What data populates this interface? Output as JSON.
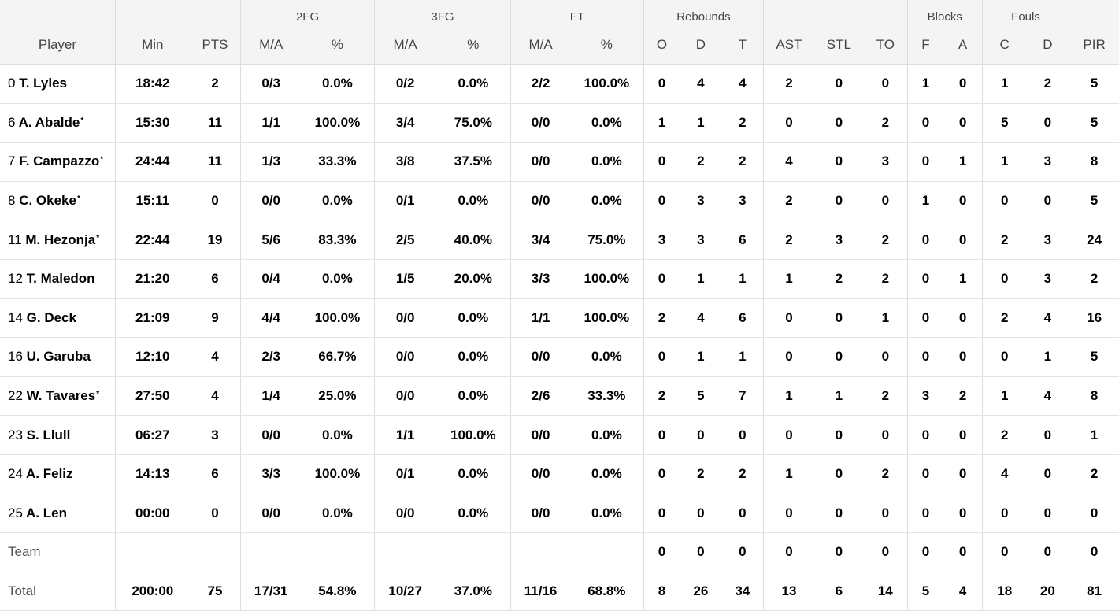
{
  "headers": {
    "groups": {
      "fg2": "2FG",
      "fg3": "3FG",
      "ft": "FT",
      "rebounds": "Rebounds",
      "blocks": "Blocks",
      "fouls": "Fouls"
    },
    "columns": {
      "player": "Player",
      "min": "Min",
      "pts": "PTS",
      "fg2_ma": "M/A",
      "fg2_pct": "%",
      "fg3_ma": "M/A",
      "fg3_pct": "%",
      "ft_ma": "M/A",
      "ft_pct": "%",
      "reb_o": "O",
      "reb_d": "D",
      "reb_t": "T",
      "ast": "AST",
      "stl": "STL",
      "to": "TO",
      "blk_f": "F",
      "blk_a": "A",
      "foul_c": "C",
      "foul_d": "D",
      "pir": "PIR"
    }
  },
  "starter_mark": "*",
  "rows": [
    {
      "number": "0",
      "name": "T. Lyles",
      "starter": false,
      "min": "18:42",
      "pts": "2",
      "fg2_ma": "0/3",
      "fg2_pct": "0.0%",
      "fg3_ma": "0/2",
      "fg3_pct": "0.0%",
      "ft_ma": "2/2",
      "ft_pct": "100.0%",
      "reb_o": "0",
      "reb_d": "4",
      "reb_t": "4",
      "ast": "2",
      "stl": "0",
      "to": "0",
      "blk_f": "1",
      "blk_a": "0",
      "foul_c": "1",
      "foul_d": "2",
      "pir": "5"
    },
    {
      "number": "6",
      "name": "A. Abalde",
      "starter": true,
      "min": "15:30",
      "pts": "11",
      "fg2_ma": "1/1",
      "fg2_pct": "100.0%",
      "fg3_ma": "3/4",
      "fg3_pct": "75.0%",
      "ft_ma": "0/0",
      "ft_pct": "0.0%",
      "reb_o": "1",
      "reb_d": "1",
      "reb_t": "2",
      "ast": "0",
      "stl": "0",
      "to": "2",
      "blk_f": "0",
      "blk_a": "0",
      "foul_c": "5",
      "foul_d": "0",
      "pir": "5"
    },
    {
      "number": "7",
      "name": "F. Campazzo",
      "starter": true,
      "min": "24:44",
      "pts": "11",
      "fg2_ma": "1/3",
      "fg2_pct": "33.3%",
      "fg3_ma": "3/8",
      "fg3_pct": "37.5%",
      "ft_ma": "0/0",
      "ft_pct": "0.0%",
      "reb_o": "0",
      "reb_d": "2",
      "reb_t": "2",
      "ast": "4",
      "stl": "0",
      "to": "3",
      "blk_f": "0",
      "blk_a": "1",
      "foul_c": "1",
      "foul_d": "3",
      "pir": "8"
    },
    {
      "number": "8",
      "name": "C. Okeke",
      "starter": true,
      "min": "15:11",
      "pts": "0",
      "fg2_ma": "0/0",
      "fg2_pct": "0.0%",
      "fg3_ma": "0/1",
      "fg3_pct": "0.0%",
      "ft_ma": "0/0",
      "ft_pct": "0.0%",
      "reb_o": "0",
      "reb_d": "3",
      "reb_t": "3",
      "ast": "2",
      "stl": "0",
      "to": "0",
      "blk_f": "1",
      "blk_a": "0",
      "foul_c": "0",
      "foul_d": "0",
      "pir": "5"
    },
    {
      "number": "11",
      "name": "M. Hezonja",
      "starter": true,
      "min": "22:44",
      "pts": "19",
      "fg2_ma": "5/6",
      "fg2_pct": "83.3%",
      "fg3_ma": "2/5",
      "fg3_pct": "40.0%",
      "ft_ma": "3/4",
      "ft_pct": "75.0%",
      "reb_o": "3",
      "reb_d": "3",
      "reb_t": "6",
      "ast": "2",
      "stl": "3",
      "to": "2",
      "blk_f": "0",
      "blk_a": "0",
      "foul_c": "2",
      "foul_d": "3",
      "pir": "24"
    },
    {
      "number": "12",
      "name": "T. Maledon",
      "starter": false,
      "min": "21:20",
      "pts": "6",
      "fg2_ma": "0/4",
      "fg2_pct": "0.0%",
      "fg3_ma": "1/5",
      "fg3_pct": "20.0%",
      "ft_ma": "3/3",
      "ft_pct": "100.0%",
      "reb_o": "0",
      "reb_d": "1",
      "reb_t": "1",
      "ast": "1",
      "stl": "2",
      "to": "2",
      "blk_f": "0",
      "blk_a": "1",
      "foul_c": "0",
      "foul_d": "3",
      "pir": "2"
    },
    {
      "number": "14",
      "name": "G. Deck",
      "starter": false,
      "min": "21:09",
      "pts": "9",
      "fg2_ma": "4/4",
      "fg2_pct": "100.0%",
      "fg3_ma": "0/0",
      "fg3_pct": "0.0%",
      "ft_ma": "1/1",
      "ft_pct": "100.0%",
      "reb_o": "2",
      "reb_d": "4",
      "reb_t": "6",
      "ast": "0",
      "stl": "0",
      "to": "1",
      "blk_f": "0",
      "blk_a": "0",
      "foul_c": "2",
      "foul_d": "4",
      "pir": "16"
    },
    {
      "number": "16",
      "name": "U. Garuba",
      "starter": false,
      "min": "12:10",
      "pts": "4",
      "fg2_ma": "2/3",
      "fg2_pct": "66.7%",
      "fg3_ma": "0/0",
      "fg3_pct": "0.0%",
      "ft_ma": "0/0",
      "ft_pct": "0.0%",
      "reb_o": "0",
      "reb_d": "1",
      "reb_t": "1",
      "ast": "0",
      "stl": "0",
      "to": "0",
      "blk_f": "0",
      "blk_a": "0",
      "foul_c": "0",
      "foul_d": "1",
      "pir": "5"
    },
    {
      "number": "22",
      "name": "W. Tavares",
      "starter": true,
      "min": "27:50",
      "pts": "4",
      "fg2_ma": "1/4",
      "fg2_pct": "25.0%",
      "fg3_ma": "0/0",
      "fg3_pct": "0.0%",
      "ft_ma": "2/6",
      "ft_pct": "33.3%",
      "reb_o": "2",
      "reb_d": "5",
      "reb_t": "7",
      "ast": "1",
      "stl": "1",
      "to": "2",
      "blk_f": "3",
      "blk_a": "2",
      "foul_c": "1",
      "foul_d": "4",
      "pir": "8"
    },
    {
      "number": "23",
      "name": "S. Llull",
      "starter": false,
      "min": "06:27",
      "pts": "3",
      "fg2_ma": "0/0",
      "fg2_pct": "0.0%",
      "fg3_ma": "1/1",
      "fg3_pct": "100.0%",
      "ft_ma": "0/0",
      "ft_pct": "0.0%",
      "reb_o": "0",
      "reb_d": "0",
      "reb_t": "0",
      "ast": "0",
      "stl": "0",
      "to": "0",
      "blk_f": "0",
      "blk_a": "0",
      "foul_c": "2",
      "foul_d": "0",
      "pir": "1"
    },
    {
      "number": "24",
      "name": "A. Feliz",
      "starter": false,
      "min": "14:13",
      "pts": "6",
      "fg2_ma": "3/3",
      "fg2_pct": "100.0%",
      "fg3_ma": "0/1",
      "fg3_pct": "0.0%",
      "ft_ma": "0/0",
      "ft_pct": "0.0%",
      "reb_o": "0",
      "reb_d": "2",
      "reb_t": "2",
      "ast": "1",
      "stl": "0",
      "to": "2",
      "blk_f": "0",
      "blk_a": "0",
      "foul_c": "4",
      "foul_d": "0",
      "pir": "2"
    },
    {
      "number": "25",
      "name": "A. Len",
      "starter": false,
      "min": "00:00",
      "pts": "0",
      "fg2_ma": "0/0",
      "fg2_pct": "0.0%",
      "fg3_ma": "0/0",
      "fg3_pct": "0.0%",
      "ft_ma": "0/0",
      "ft_pct": "0.0%",
      "reb_o": "0",
      "reb_d": "0",
      "reb_t": "0",
      "ast": "0",
      "stl": "0",
      "to": "0",
      "blk_f": "0",
      "blk_a": "0",
      "foul_c": "0",
      "foul_d": "0",
      "pir": "0"
    }
  ],
  "team": {
    "label": "Team",
    "min": "",
    "pts": "",
    "fg2_ma": "",
    "fg2_pct": "",
    "fg3_ma": "",
    "fg3_pct": "",
    "ft_ma": "",
    "ft_pct": "",
    "reb_o": "0",
    "reb_d": "0",
    "reb_t": "0",
    "ast": "0",
    "stl": "0",
    "to": "0",
    "blk_f": "0",
    "blk_a": "0",
    "foul_c": "0",
    "foul_d": "0",
    "pir": "0"
  },
  "total": {
    "label": "Total",
    "min": "200:00",
    "pts": "75",
    "fg2_ma": "17/31",
    "fg2_pct": "54.8%",
    "fg3_ma": "10/27",
    "fg3_pct": "37.0%",
    "ft_ma": "11/16",
    "ft_pct": "68.8%",
    "reb_o": "8",
    "reb_d": "26",
    "reb_t": "34",
    "ast": "13",
    "stl": "6",
    "to": "14",
    "blk_f": "5",
    "blk_a": "4",
    "foul_c": "18",
    "foul_d": "20",
    "pir": "81"
  }
}
